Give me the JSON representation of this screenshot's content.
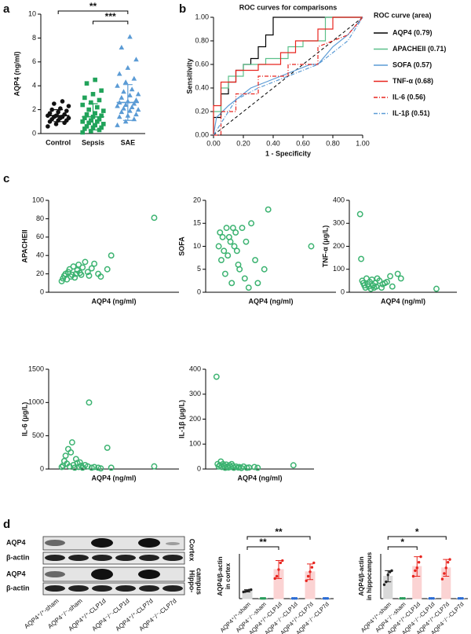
{
  "panel_labels": [
    "a",
    "b",
    "c",
    "d"
  ],
  "blot": {
    "rows": [
      "AQP4",
      "β-actin",
      "AQP4",
      "β-actin"
    ],
    "regions": [
      [
        "Cortex"
      ],
      [
        "Hippo-",
        "campus"
      ]
    ],
    "lanes": [
      "AQP4⁺/⁺-sham",
      "AQP4⁻/⁻-sham",
      "AQP4⁺/⁺-CLP1d",
      "AQP4⁻/⁻-CLP1d",
      "AQP4⁺/⁺-CLP7d",
      "AQP4⁻/⁻-CLP7d"
    ]
  },
  "chart_data": [
    {
      "type": "strip",
      "ylabel": "AQP4  (ng/ml)",
      "categories": [
        "Control",
        "Sepsis",
        "SAE"
      ],
      "ylim": [
        0,
        10
      ],
      "yticks": [
        0,
        2,
        4,
        6,
        8,
        10
      ],
      "series": [
        {
          "name": "Control",
          "color": "#111111",
          "marker": "circle",
          "mean": 1.5,
          "sd": 0.5,
          "values": [
            0.6,
            0.8,
            0.9,
            1.0,
            1.1,
            1.1,
            1.2,
            1.3,
            1.3,
            1.4,
            1.4,
            1.5,
            1.5,
            1.6,
            1.7,
            1.8,
            1.9,
            2.0,
            2.1,
            2.3,
            2.5,
            2.7
          ]
        },
        {
          "name": "Sepsis",
          "color": "#21a35a",
          "marker": "square",
          "mean": 1.4,
          "sd": 1.1,
          "values": [
            0.1,
            0.2,
            0.3,
            0.4,
            0.5,
            0.5,
            0.6,
            0.7,
            0.8,
            0.9,
            1.0,
            1.0,
            1.1,
            1.2,
            1.3,
            1.4,
            1.5,
            1.6,
            1.7,
            1.9,
            2.0,
            2.2,
            2.4,
            2.6,
            2.8,
            3.0,
            3.3,
            3.6,
            4.2,
            4.5
          ]
        },
        {
          "name": "SAE",
          "color": "#5b9bd5",
          "marker": "triangle",
          "mean": 2.6,
          "sd": 1.5,
          "values": [
            0.7,
            1.0,
            1.2,
            1.4,
            1.5,
            1.6,
            1.8,
            1.9,
            2.0,
            2.1,
            2.2,
            2.3,
            2.4,
            2.5,
            2.6,
            2.7,
            2.8,
            3.0,
            3.2,
            3.3,
            3.5,
            3.7,
            4.0,
            4.3,
            4.6,
            5.0,
            5.5,
            6.2,
            7.2,
            8.1
          ]
        }
      ],
      "annotations": [
        {
          "text": "**",
          "categories": [
            "Control",
            "SAE"
          ]
        },
        {
          "text": "***",
          "categories": [
            "Sepsis",
            "SAE"
          ]
        }
      ]
    },
    {
      "type": "line",
      "title": "ROC curves for comparisons",
      "xlabel": "1 - Specificity",
      "ylabel": "Sensitivity",
      "xlim": [
        0,
        1
      ],
      "ylim": [
        0,
        1
      ],
      "xticks": [
        {
          "value": 0,
          "label": "0.00"
        },
        {
          "value": 0.2,
          "label": "0.20"
        },
        {
          "value": 0.4,
          "label": "0.40"
        },
        {
          "value": 0.6,
          "label": "0.60"
        },
        {
          "value": 0.8,
          "label": "0.80"
        },
        {
          "value": 1,
          "label": "1.00"
        }
      ],
      "yticks": [
        {
          "value": 0,
          "label": "0.00"
        },
        {
          "value": 0.2,
          "label": "0.20"
        },
        {
          "value": 0.4,
          "label": "0.40"
        },
        {
          "value": 0.6,
          "label": "0.60"
        },
        {
          "value": 0.8,
          "label": "0.80"
        },
        {
          "value": 1,
          "label": "1.00"
        }
      ],
      "legend_title": "ROC curve (area)",
      "legend": "right",
      "reference_line": true,
      "series": [
        {
          "name": "AQP4 (0.79)",
          "color": "#000000",
          "dash": "solid",
          "x": [
            0,
            0,
            0.05,
            0.05,
            0.1,
            0.1,
            0.15,
            0.15,
            0.2,
            0.2,
            0.25,
            0.25,
            0.3,
            0.3,
            0.35,
            0.35,
            0.4,
            0.4,
            1
          ],
          "values": [
            0,
            0.15,
            0.15,
            0.35,
            0.35,
            0.45,
            0.45,
            0.55,
            0.55,
            0.6,
            0.6,
            0.65,
            0.65,
            0.75,
            0.75,
            0.85,
            0.85,
            1,
            1
          ]
        },
        {
          "name": "APACHEII (0.71)",
          "color": "#5cc08a",
          "dash": "solid",
          "x": [
            0,
            0,
            0.05,
            0.05,
            0.1,
            0.1,
            0.2,
            0.2,
            0.35,
            0.35,
            0.5,
            0.5,
            0.6,
            0.6,
            0.75,
            0.75,
            1
          ],
          "values": [
            0,
            0.2,
            0.2,
            0.4,
            0.4,
            0.5,
            0.5,
            0.6,
            0.6,
            0.65,
            0.65,
            0.75,
            0.75,
            0.8,
            0.8,
            1,
            1
          ]
        },
        {
          "name": "SOFA (0.57)",
          "color": "#5b9bd5",
          "dash": "solid",
          "x": [
            0,
            0.02,
            0.1,
            0.15,
            0.25,
            0.35,
            0.45,
            0.55,
            0.65,
            0.7,
            0.8,
            0.9,
            1
          ],
          "values": [
            0,
            0.15,
            0.25,
            0.3,
            0.4,
            0.45,
            0.5,
            0.55,
            0.6,
            0.6,
            0.75,
            0.85,
            1
          ]
        },
        {
          "name": "TNF-α (0.68)",
          "color": "#e8251f",
          "dash": "solid",
          "x": [
            0,
            0,
            0.05,
            0.05,
            0.15,
            0.15,
            0.3,
            0.3,
            0.45,
            0.45,
            0.55,
            0.55,
            0.7,
            0.7,
            0.8,
            0.8,
            1
          ],
          "values": [
            0,
            0.25,
            0.25,
            0.45,
            0.45,
            0.55,
            0.55,
            0.6,
            0.6,
            0.7,
            0.7,
            0.8,
            0.8,
            0.9,
            0.9,
            1,
            1
          ]
        },
        {
          "name": "IL-6 (0.56)",
          "color": "#e8251f",
          "dash": "dashdot",
          "x": [
            0,
            0.05,
            0.05,
            0.15,
            0.15,
            0.3,
            0.3,
            0.5,
            0.5,
            0.7,
            0.7,
            0.9,
            1
          ],
          "values": [
            0,
            0,
            0.2,
            0.2,
            0.35,
            0.35,
            0.5,
            0.5,
            0.6,
            0.6,
            0.75,
            0.85,
            1
          ]
        },
        {
          "name": "IL-1β (0.51)",
          "color": "#5b9bd5",
          "dash": "dashdot",
          "x": [
            0,
            0.1,
            0.15,
            0.3,
            0.5,
            0.7,
            0.9,
            1
          ],
          "values": [
            0,
            0.2,
            0.3,
            0.4,
            0.5,
            0.6,
            0.8,
            1
          ]
        }
      ]
    },
    {
      "type": "scatter",
      "xlabel": "AQP4  (ng/ml)",
      "ylabel": "APACHEII",
      "color": "#3cb371",
      "xlim": [
        0,
        10
      ],
      "ylim": [
        0,
        100
      ],
      "yticks": [
        0,
        20,
        40,
        60,
        80,
        100
      ],
      "x": [
        1.0,
        1.1,
        1.2,
        1.3,
        1.4,
        1.5,
        1.6,
        1.7,
        1.8,
        1.9,
        2.0,
        2.1,
        2.2,
        2.3,
        2.4,
        2.5,
        2.6,
        2.8,
        3.0,
        3.1,
        3.3,
        3.5,
        3.8,
        4.0,
        4.5,
        4.8,
        8.1
      ],
      "values": [
        12,
        15,
        18,
        20,
        14,
        22,
        25,
        17,
        19,
        28,
        16,
        20,
        24,
        30,
        21,
        19,
        27,
        33,
        22,
        18,
        26,
        31,
        20,
        17,
        25,
        40,
        81
      ]
    },
    {
      "type": "scatter",
      "xlabel": "AQP4  (ng/ml)",
      "ylabel": "SOFA",
      "color": "#3cb371",
      "xlim": [
        0,
        10
      ],
      "ylim": [
        0,
        20
      ],
      "yticks": [
        0,
        5,
        10,
        15,
        20
      ],
      "x": [
        1.0,
        1.1,
        1.2,
        1.3,
        1.4,
        1.5,
        1.6,
        1.7,
        1.8,
        1.9,
        2.0,
        2.1,
        2.2,
        2.3,
        2.4,
        2.5,
        2.6,
        2.8,
        3.0,
        3.1,
        3.3,
        3.5,
        3.8,
        4.0,
        4.5,
        4.8,
        8.1
      ],
      "values": [
        10,
        13,
        7,
        12,
        9,
        4,
        14,
        8,
        12,
        11,
        2,
        14,
        10,
        13,
        9,
        6,
        5,
        14,
        3,
        11,
        1,
        15,
        7,
        2,
        5,
        18,
        10
      ]
    },
    {
      "type": "scatter",
      "xlabel": "AQP4  (ng/ml)",
      "ylabel": "TNF-α  (μg/L)",
      "color": "#3cb371",
      "xlim": [
        0,
        10
      ],
      "ylim": [
        0,
        400
      ],
      "yticks": [
        0,
        100,
        200,
        300,
        400
      ],
      "x": [
        1.0,
        1.1,
        1.2,
        1.3,
        1.4,
        1.5,
        1.6,
        1.7,
        1.8,
        1.9,
        2.0,
        2.1,
        2.2,
        2.3,
        2.4,
        2.5,
        2.6,
        2.8,
        3.0,
        3.1,
        3.3,
        3.5,
        3.8,
        4.0,
        4.5,
        4.8,
        8.1
      ],
      "values": [
        340,
        145,
        50,
        40,
        30,
        20,
        60,
        35,
        25,
        45,
        15,
        55,
        30,
        20,
        40,
        25,
        60,
        50,
        20,
        35,
        40,
        45,
        70,
        25,
        80,
        60,
        15
      ]
    },
    {
      "type": "scatter",
      "xlabel": "AQP4  (ng/ml)",
      "ylabel": "IL-6  (μg/L)",
      "color": "#3cb371",
      "xlim": [
        0,
        10
      ],
      "ylim": [
        0,
        1500
      ],
      "yticks": [
        0,
        500,
        1000,
        1500
      ],
      "x": [
        1.0,
        1.1,
        1.2,
        1.3,
        1.4,
        1.5,
        1.6,
        1.7,
        1.8,
        1.9,
        2.0,
        2.1,
        2.2,
        2.3,
        2.4,
        2.5,
        2.6,
        2.8,
        3.0,
        3.1,
        3.3,
        3.5,
        3.8,
        4.0,
        4.5,
        4.8,
        8.1
      ],
      "values": [
        30,
        50,
        120,
        200,
        80,
        300,
        40,
        250,
        400,
        60,
        20,
        150,
        90,
        30,
        100,
        50,
        20,
        60,
        40,
        1000,
        20,
        30,
        20,
        10,
        320,
        20,
        40
      ]
    },
    {
      "type": "scatter",
      "xlabel": "AQP4  (ng/ml)",
      "ylabel": "IL-1β  (μg/L)",
      "color": "#3cb371",
      "xlim": [
        0,
        10
      ],
      "ylim": [
        0,
        400
      ],
      "yticks": [
        0,
        100,
        200,
        300,
        400
      ],
      "x": [
        1.0,
        1.1,
        1.2,
        1.3,
        1.4,
        1.5,
        1.6,
        1.7,
        1.8,
        1.9,
        2.0,
        2.1,
        2.2,
        2.3,
        2.4,
        2.5,
        2.6,
        2.8,
        3.0,
        3.1,
        3.3,
        3.5,
        3.8,
        4.0,
        4.5,
        4.8,
        8.1
      ],
      "values": [
        370,
        20,
        10,
        15,
        30,
        8,
        20,
        12,
        5,
        18,
        10,
        6,
        15,
        8,
        20,
        12,
        5,
        10,
        6,
        8,
        4,
        10,
        5,
        6,
        8,
        5,
        15
      ]
    },
    {
      "type": "bar",
      "ylabel": [
        "AQP4/β-actin",
        "in cortex"
      ],
      "ylim": [
        0,
        2
      ],
      "categories": [
        "AQP4⁺/⁺-sham",
        "AQP4⁻/⁻-sham",
        "AQP4⁺/⁺-CLP1d",
        "AQP4⁻/⁻-CLP1d",
        "AQP4⁺/⁺-CLP7d",
        "AQP4⁻/⁻-CLP7d"
      ],
      "colors": [
        "#d9d9d9",
        "#ffffff",
        "#fbd3d3",
        "#ffffff",
        "#fbd3d3",
        "#ffffff"
      ],
      "point_colors": [
        "#222222",
        "#2a9d5c",
        "#e8251f",
        "#2b6cd4",
        "#e8251f",
        "#2b6cd4"
      ],
      "values": [
        0.35,
        0.01,
        1.3,
        0.01,
        1.2,
        0.01
      ],
      "errors": [
        0.05,
        0,
        0.4,
        0,
        0.35,
        0
      ],
      "points": [
        [
          0.3,
          0.32,
          0.35,
          0.38,
          0.4
        ],
        [
          0.01,
          0.01,
          0.01
        ],
        [
          0.9,
          1.0,
          1.3,
          1.6,
          1.7
        ],
        [
          0.01,
          0.01,
          0.01
        ],
        [
          0.8,
          1.0,
          1.2,
          1.4,
          1.6
        ],
        [
          0.01,
          0.01,
          0.01
        ]
      ],
      "annotations": [
        {
          "text": "**",
          "categories": [
            "AQP4⁺/⁺-sham",
            "AQP4⁺/⁺-CLP7d"
          ]
        },
        {
          "text": "**",
          "categories": [
            "AQP4⁺/⁺-sham",
            "AQP4⁺/⁺-CLP1d"
          ]
        }
      ]
    },
    {
      "type": "bar",
      "ylabel": [
        "AQP4/β-actin",
        "in hippocampus"
      ],
      "ylim": [
        0,
        1.6
      ],
      "categories": [
        "AQP4⁺/⁺-sham",
        "AQP4⁻/⁻-sham",
        "AQP4⁺/⁺-CLP1d",
        "AQP4⁻/⁻-CLP1d",
        "AQP4⁺/⁺-CLP7d",
        "AQP4⁻/⁻-CLP7d"
      ],
      "colors": [
        "#d9d9d9",
        "#ffffff",
        "#fbd3d3",
        "#ffffff",
        "#fbd3d3",
        "#ffffff"
      ],
      "point_colors": [
        "#222222",
        "#2a9d5c",
        "#e8251f",
        "#2b6cd4",
        "#e8251f",
        "#2b6cd4"
      ],
      "values": [
        0.8,
        0.01,
        1.15,
        0.01,
        1.1,
        0.01
      ],
      "errors": [
        0.2,
        0,
        0.35,
        0,
        0.3,
        0
      ],
      "points": [
        [
          0.5,
          0.6,
          0.85,
          0.95,
          1.0
        ],
        [
          0.01,
          0.01,
          0.01
        ],
        [
          0.8,
          1.0,
          1.1,
          1.3,
          1.5
        ],
        [
          0.01,
          0.01,
          0.01
        ],
        [
          0.7,
          0.9,
          1.1,
          1.3,
          1.4
        ],
        [
          0.01,
          0.01,
          0.01
        ]
      ],
      "annotations": [
        {
          "text": "*",
          "categories": [
            "AQP4⁺/⁺-sham",
            "AQP4⁺/⁺-CLP7d"
          ]
        },
        {
          "text": "*",
          "categories": [
            "AQP4⁺/⁺-sham",
            "AQP4⁺/⁺-CLP1d"
          ]
        }
      ]
    }
  ]
}
